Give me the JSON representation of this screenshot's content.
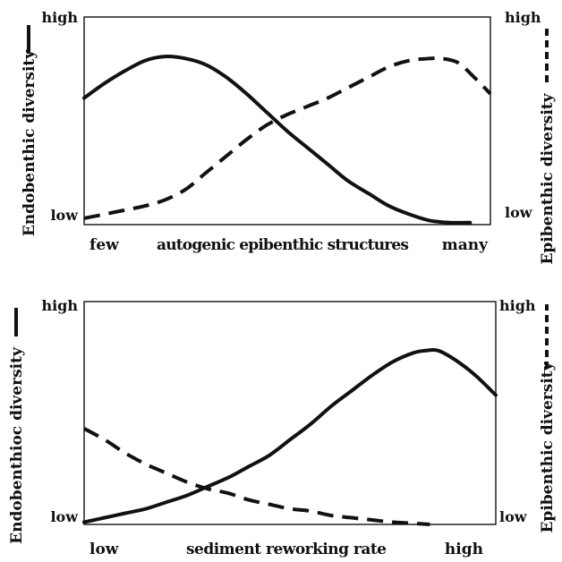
{
  "chart_data": [
    {
      "type": "line",
      "x_extremes": [
        "few",
        "many"
      ],
      "xlabel": "autogenic epibenthic structures",
      "ylabel_left": "Endobenthic diversity",
      "ylabel_right": "Epibenthic diversity",
      "y_ticks_left": [
        "low",
        "high"
      ],
      "y_ticks_right": [
        "low",
        "high"
      ],
      "xlim": [
        0,
        1
      ],
      "ylim": [
        0,
        1
      ],
      "grid": false,
      "series": [
        {
          "name": "Endobenthic diversity",
          "style": "solid",
          "axis": "left",
          "x": [
            0.0,
            0.05,
            0.1,
            0.15,
            0.2,
            0.25,
            0.3,
            0.35,
            0.4,
            0.45,
            0.5,
            0.55,
            0.6,
            0.65,
            0.7,
            0.75,
            0.8,
            0.85,
            0.9,
            0.95
          ],
          "y": [
            0.61,
            0.68,
            0.74,
            0.79,
            0.81,
            0.8,
            0.77,
            0.71,
            0.63,
            0.54,
            0.45,
            0.37,
            0.29,
            0.21,
            0.15,
            0.09,
            0.05,
            0.02,
            0.01,
            0.01
          ]
        },
        {
          "name": "Epibenthic diversity",
          "style": "dashed",
          "axis": "right",
          "x": [
            0.0,
            0.05,
            0.1,
            0.15,
            0.2,
            0.25,
            0.3,
            0.35,
            0.4,
            0.45,
            0.5,
            0.55,
            0.6,
            0.65,
            0.7,
            0.75,
            0.8,
            0.85,
            0.88,
            0.92,
            0.96,
            1.0
          ],
          "y": [
            0.03,
            0.05,
            0.07,
            0.09,
            0.12,
            0.17,
            0.25,
            0.33,
            0.41,
            0.48,
            0.53,
            0.57,
            0.61,
            0.66,
            0.71,
            0.76,
            0.79,
            0.8,
            0.8,
            0.78,
            0.71,
            0.63
          ]
        }
      ]
    },
    {
      "type": "line",
      "x_extremes": [
        "low",
        "high"
      ],
      "xlabel": "sediment reworking rate",
      "ylabel_left": "Endobenthioc diversity",
      "ylabel_right": "Epibenthic diversity",
      "y_ticks_left": [
        "low",
        "high"
      ],
      "y_ticks_right": [
        "low",
        "high"
      ],
      "xlim": [
        0,
        1
      ],
      "ylim": [
        0,
        1
      ],
      "grid": false,
      "series": [
        {
          "name": "Endobenthioc diversity",
          "style": "solid",
          "axis": "left",
          "x": [
            0.0,
            0.05,
            0.1,
            0.15,
            0.2,
            0.25,
            0.3,
            0.35,
            0.4,
            0.45,
            0.5,
            0.55,
            0.6,
            0.65,
            0.7,
            0.75,
            0.8,
            0.83,
            0.86,
            0.9,
            0.95,
            1.0
          ],
          "y": [
            0.01,
            0.03,
            0.05,
            0.07,
            0.1,
            0.13,
            0.17,
            0.21,
            0.26,
            0.31,
            0.38,
            0.45,
            0.53,
            0.6,
            0.67,
            0.73,
            0.77,
            0.78,
            0.78,
            0.74,
            0.67,
            0.58
          ]
        },
        {
          "name": "Epibenthic diversity",
          "style": "dashed",
          "axis": "right",
          "x": [
            0.0,
            0.05,
            0.1,
            0.15,
            0.2,
            0.25,
            0.3,
            0.35,
            0.4,
            0.45,
            0.5,
            0.55,
            0.6,
            0.65,
            0.7,
            0.75,
            0.8,
            0.84
          ],
          "y": [
            0.43,
            0.38,
            0.32,
            0.27,
            0.23,
            0.19,
            0.16,
            0.14,
            0.11,
            0.09,
            0.07,
            0.06,
            0.04,
            0.03,
            0.02,
            0.01,
            0.005,
            0.0
          ]
        }
      ]
    }
  ]
}
